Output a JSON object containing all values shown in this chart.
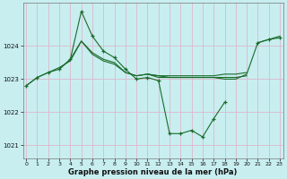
{
  "title": "Graphe pression niveau de la mer (hPa)",
  "bg_color": "#c8eef0",
  "grid_color": "#ddb8cc",
  "line_color": "#1a6b2a",
  "ylim": [
    1020.6,
    1025.3
  ],
  "yticks": [
    1021,
    1022,
    1023,
    1024
  ],
  "xlim": [
    -0.3,
    23.3
  ],
  "xticks": [
    0,
    1,
    2,
    3,
    4,
    5,
    6,
    7,
    8,
    9,
    10,
    11,
    12,
    13,
    14,
    15,
    16,
    17,
    18,
    19,
    20,
    21,
    22,
    23
  ],
  "line1": [
    1022.8,
    1023.05,
    1023.2,
    1023.3,
    1023.6,
    1025.05,
    1024.3,
    1023.85,
    1023.65,
    1023.3,
    1023.0,
    1023.05,
    1022.95,
    1021.35,
    1021.35,
    1021.45,
    1021.25,
    1021.8,
    1022.3,
    null,
    null,
    1024.1,
    1024.2,
    1024.25
  ],
  "line2": [
    null,
    null,
    null,
    1023.3,
    1023.6,
    1024.15,
    1023.8,
    1023.6,
    1023.5,
    1023.2,
    1023.1,
    1023.15,
    1023.05,
    1023.05,
    1023.05,
    1023.05,
    1023.05,
    1023.05,
    1023.05,
    1023.05,
    1023.1,
    null,
    null,
    null
  ],
  "line3_start": 0,
  "line3": [
    1022.8,
    1023.05,
    1023.2,
    1023.35,
    1023.55,
    1024.15,
    1023.75,
    1023.55,
    1023.45,
    1023.2,
    1023.1,
    1023.15,
    1023.1,
    1023.1,
    1023.1,
    1023.1,
    1023.1,
    1023.1,
    1023.15,
    1023.15,
    1023.2,
    null,
    null,
    null
  ],
  "line4": [
    null,
    null,
    null,
    null,
    null,
    null,
    null,
    null,
    null,
    null,
    null,
    1023.15,
    1023.1,
    1023.05,
    1023.05,
    1023.05,
    1023.05,
    1023.05,
    1023.0,
    1023.0,
    1023.15,
    1024.1,
    1024.2,
    1024.3
  ]
}
